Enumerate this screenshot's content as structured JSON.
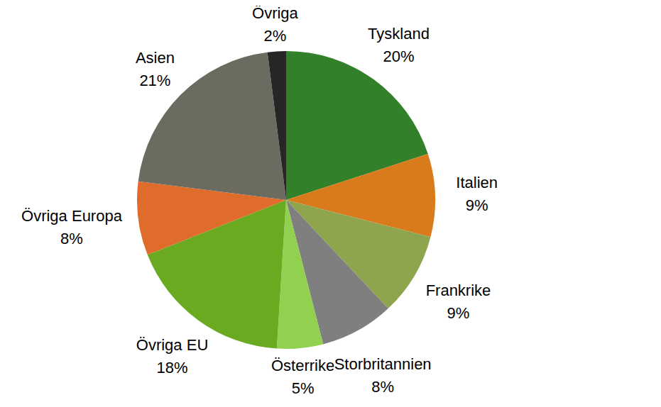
{
  "chart_data": {
    "type": "pie",
    "categories": [
      "Tyskland",
      "Italien",
      "Frankrike",
      "Storbritannien",
      "Österrike",
      "Övriga EU",
      "Övriga Europa",
      "Asien",
      "Övriga"
    ],
    "values": [
      20,
      9,
      9,
      8,
      5,
      18,
      8,
      21,
      2
    ],
    "value_labels": [
      "20%",
      "9%",
      "9%",
      "8%",
      "5%",
      "18%",
      "8%",
      "21%",
      "2%"
    ],
    "colors": [
      "#33802a",
      "#d97b1c",
      "#8ea54e",
      "#7f7f7f",
      "#92d050",
      "#6aaa20",
      "#e06c2c",
      "#6b6b60",
      "#262626"
    ]
  }
}
